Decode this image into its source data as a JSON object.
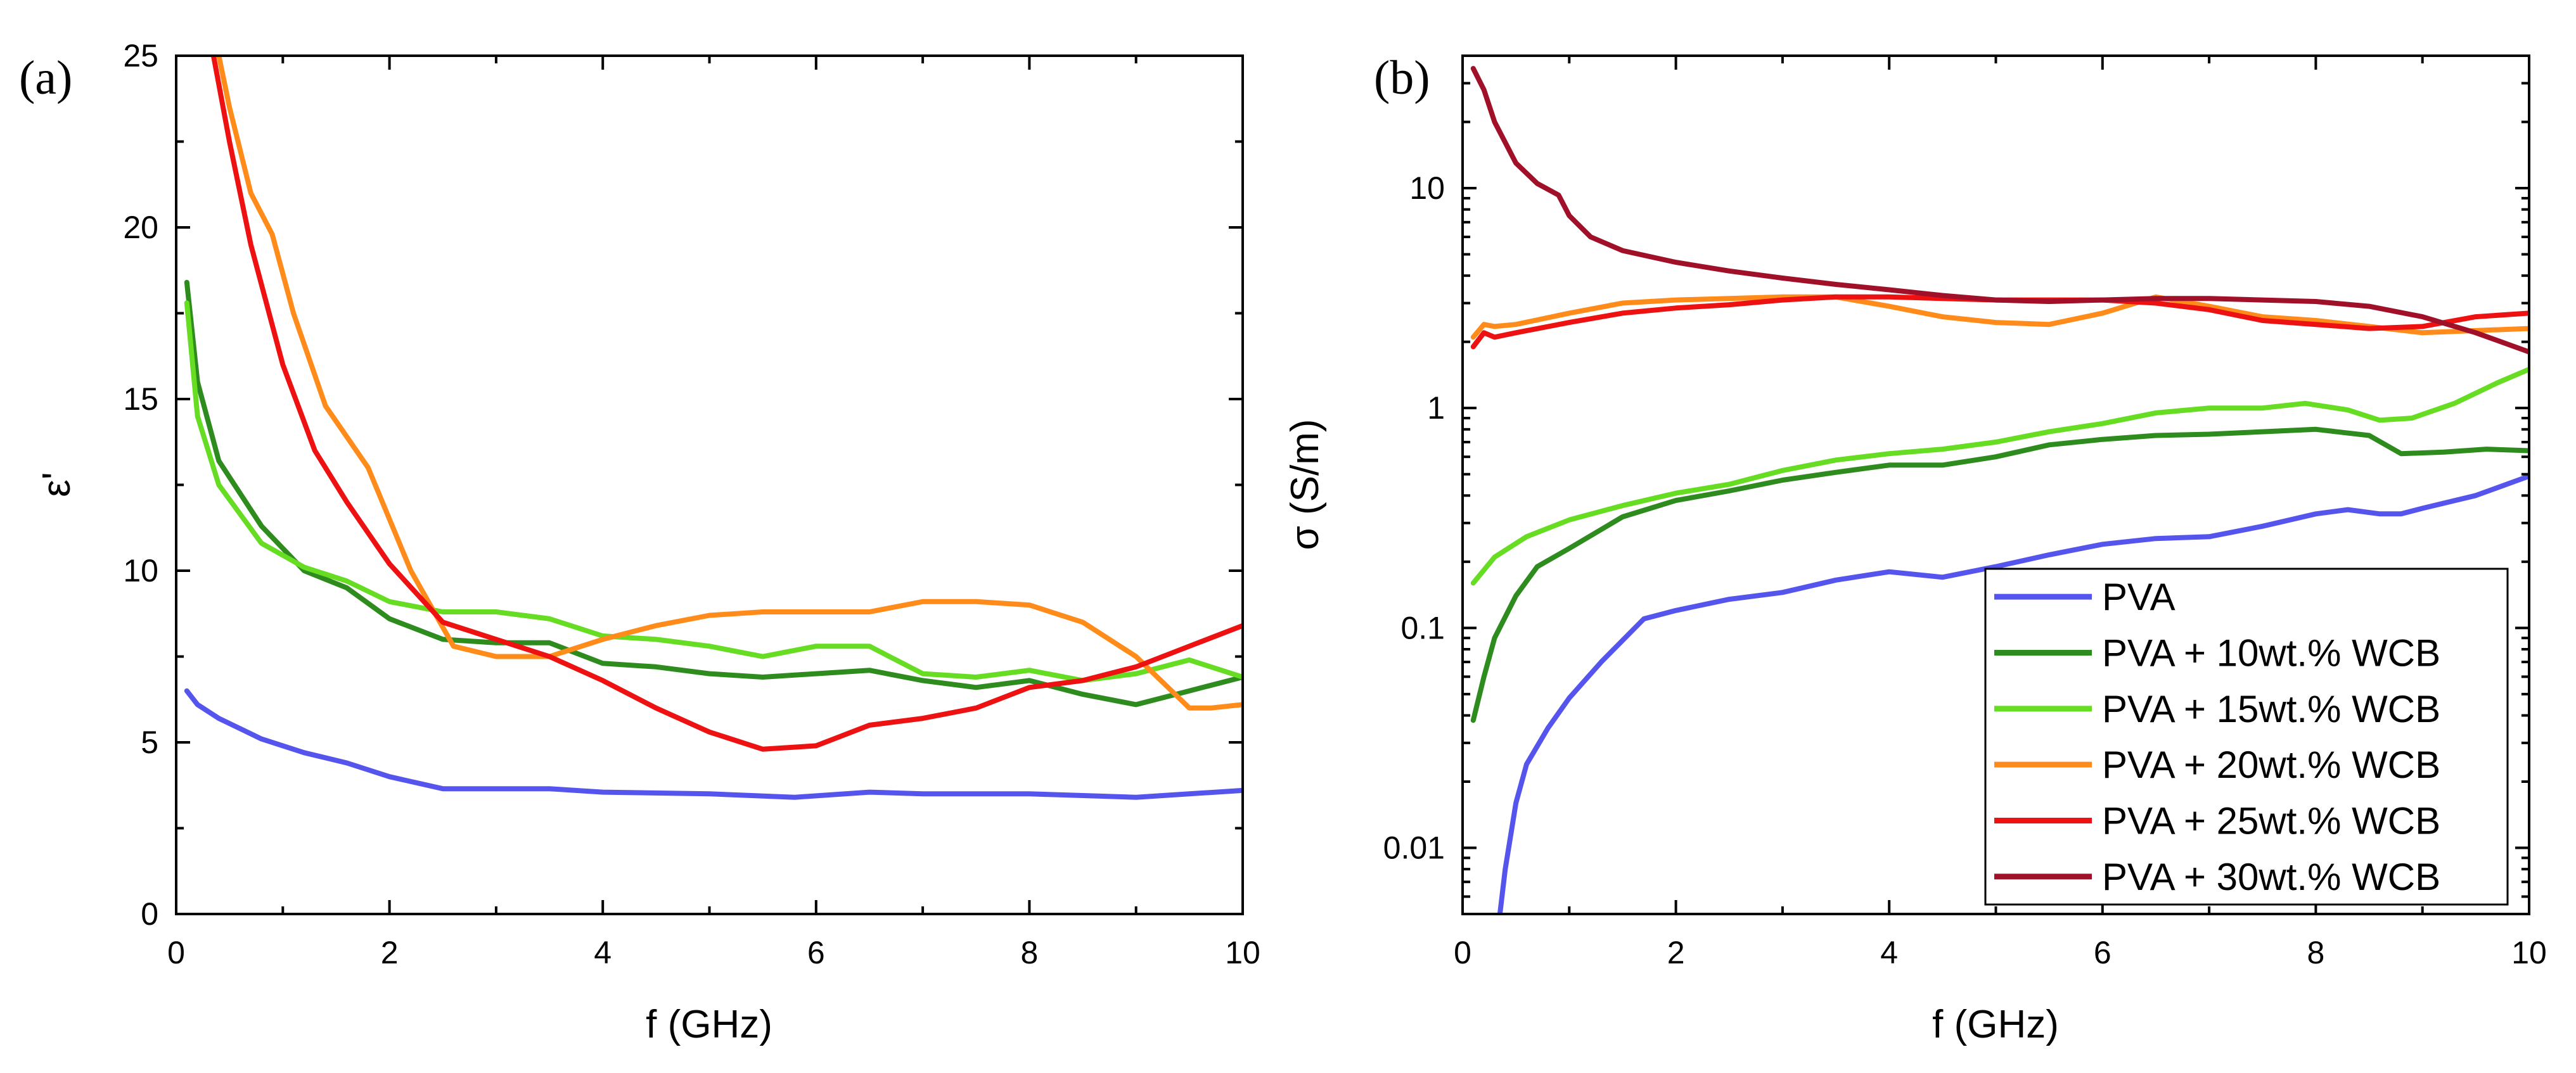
{
  "figure": {
    "panel_a_label": "(a)",
    "panel_b_label": "(b)"
  },
  "chart_data": [
    {
      "type": "line",
      "panel": "(a)",
      "xlabel": "f (GHz)",
      "ylabel": "ε'",
      "xlim": [
        0,
        10
      ],
      "ylim": [
        0,
        25
      ],
      "x_ticks": [
        0,
        2,
        4,
        6,
        8,
        10
      ],
      "y_ticks": [
        0,
        5,
        10,
        15,
        20,
        25
      ],
      "y_scale": "linear",
      "grid": false,
      "series": [
        {
          "name": "PVA",
          "color": "#5555ee",
          "x": [
            0.1,
            0.2,
            0.4,
            0.8,
            1.2,
            1.6,
            2.0,
            2.5,
            3.0,
            3.5,
            4.0,
            5.0,
            5.8,
            6.5,
            7.0,
            8.0,
            9.0,
            9.5,
            10.0
          ],
          "y": [
            6.5,
            6.1,
            5.7,
            5.1,
            4.7,
            4.4,
            4.0,
            3.65,
            3.65,
            3.65,
            3.55,
            3.5,
            3.4,
            3.55,
            3.5,
            3.5,
            3.4,
            3.5,
            3.6
          ]
        },
        {
          "name": "PVA + 10wt.% WCB",
          "color": "#2e8b1e",
          "x": [
            0.1,
            0.2,
            0.4,
            0.8,
            1.2,
            1.6,
            2.0,
            2.5,
            3.0,
            3.5,
            4.0,
            4.5,
            5.0,
            5.5,
            6.0,
            6.5,
            7.0,
            7.5,
            8.0,
            8.5,
            9.0,
            9.5,
            10.0
          ],
          "y": [
            18.4,
            15.5,
            13.2,
            11.3,
            10.0,
            9.5,
            8.6,
            8.0,
            7.9,
            7.9,
            7.3,
            7.2,
            7.0,
            6.9,
            7.0,
            7.1,
            6.8,
            6.6,
            6.8,
            6.4,
            6.1,
            6.5,
            6.9
          ]
        },
        {
          "name": "PVA + 15wt.% WCB",
          "color": "#66dd22",
          "x": [
            0.1,
            0.2,
            0.4,
            0.8,
            1.2,
            1.6,
            2.0,
            2.5,
            3.0,
            3.5,
            4.0,
            4.5,
            5.0,
            5.5,
            6.0,
            6.5,
            7.0,
            7.5,
            8.0,
            8.5,
            9.0,
            9.5,
            10.0
          ],
          "y": [
            17.8,
            14.5,
            12.5,
            10.8,
            10.1,
            9.7,
            9.1,
            8.8,
            8.8,
            8.6,
            8.1,
            8.0,
            7.8,
            7.5,
            7.8,
            7.8,
            7.0,
            6.9,
            7.1,
            6.8,
            7.0,
            7.4,
            6.9
          ]
        },
        {
          "name": "PVA + 20wt.% WCB",
          "color": "#ff8c1a",
          "x": [
            0.4,
            0.5,
            0.7,
            0.9,
            1.1,
            1.4,
            1.8,
            2.2,
            2.6,
            3.0,
            3.5,
            4.0,
            4.5,
            5.0,
            5.5,
            6.0,
            6.5,
            7.0,
            7.5,
            8.0,
            8.5,
            9.0,
            9.5,
            9.7,
            10.0
          ],
          "y": [
            25,
            23.5,
            21.0,
            19.8,
            17.5,
            14.8,
            13.0,
            10.0,
            7.8,
            7.5,
            7.5,
            8.0,
            8.4,
            8.7,
            8.8,
            8.8,
            8.8,
            9.1,
            9.1,
            9.0,
            8.5,
            7.5,
            6.0,
            6.0,
            6.1
          ]
        },
        {
          "name": "PVA + 25wt.% WCB",
          "color": "#ee1111",
          "x": [
            0.35,
            0.5,
            0.7,
            1.0,
            1.3,
            1.6,
            2.0,
            2.5,
            3.0,
            3.5,
            4.0,
            4.5,
            5.0,
            5.5,
            6.0,
            6.5,
            7.0,
            7.5,
            8.0,
            8.5,
            9.0,
            9.5,
            10.0
          ],
          "y": [
            25,
            22.5,
            19.5,
            16.0,
            13.5,
            12.0,
            10.2,
            8.5,
            8.0,
            7.5,
            6.8,
            6.0,
            5.3,
            4.8,
            4.9,
            5.5,
            5.7,
            6.0,
            6.6,
            6.8,
            7.2,
            7.8,
            8.4
          ]
        }
      ]
    },
    {
      "type": "line",
      "panel": "(b)",
      "xlabel": "f (GHz)",
      "ylabel": "σ (S/m)",
      "xlim": [
        0,
        10
      ],
      "ylim": [
        0.005,
        40
      ],
      "x_ticks": [
        0,
        2,
        4,
        6,
        8,
        10
      ],
      "y_ticks": [
        0.01,
        0.1,
        1,
        10
      ],
      "y_tick_labels": [
        "0.01",
        "0.1",
        "1",
        "10"
      ],
      "y_scale": "log",
      "grid": false,
      "legend_position": "bottom-right",
      "series": [
        {
          "name": "PVA",
          "color": "#5555ee",
          "x": [
            0.35,
            0.4,
            0.5,
            0.6,
            0.8,
            1.0,
            1.3,
            1.7,
            2.0,
            2.5,
            3.0,
            3.5,
            4.0,
            4.5,
            5.0,
            5.5,
            6.0,
            6.5,
            7.0,
            7.5,
            8.0,
            8.3,
            8.6,
            8.8,
            9.0,
            9.5,
            10.0
          ],
          "y": [
            0.005,
            0.008,
            0.016,
            0.024,
            0.035,
            0.048,
            0.07,
            0.11,
            0.12,
            0.135,
            0.145,
            0.165,
            0.18,
            0.17,
            0.19,
            0.215,
            0.24,
            0.255,
            0.26,
            0.29,
            0.33,
            0.345,
            0.33,
            0.33,
            0.35,
            0.4,
            0.49
          ]
        },
        {
          "name": "PVA + 10wt.% WCB",
          "color": "#2e8b1e",
          "x": [
            0.1,
            0.2,
            0.3,
            0.5,
            0.7,
            1.0,
            1.5,
            2.0,
            2.5,
            3.0,
            3.5,
            4.0,
            4.5,
            5.0,
            5.5,
            6.0,
            6.5,
            7.0,
            7.5,
            8.0,
            8.5,
            8.8,
            9.2,
            9.6,
            10.0
          ],
          "y": [
            0.038,
            0.06,
            0.09,
            0.14,
            0.19,
            0.23,
            0.32,
            0.38,
            0.42,
            0.47,
            0.51,
            0.55,
            0.55,
            0.6,
            0.68,
            0.72,
            0.75,
            0.76,
            0.78,
            0.8,
            0.75,
            0.62,
            0.63,
            0.65,
            0.64
          ]
        },
        {
          "name": "PVA + 15wt.% WCB",
          "color": "#66dd22",
          "x": [
            0.1,
            0.3,
            0.6,
            1.0,
            1.5,
            2.0,
            2.5,
            3.0,
            3.5,
            4.0,
            4.5,
            5.0,
            5.5,
            6.0,
            6.5,
            7.0,
            7.5,
            7.9,
            8.3,
            8.6,
            8.9,
            9.3,
            9.7,
            10.0
          ],
          "y": [
            0.16,
            0.21,
            0.26,
            0.31,
            0.36,
            0.41,
            0.45,
            0.52,
            0.58,
            0.62,
            0.65,
            0.7,
            0.78,
            0.85,
            0.95,
            1.0,
            1.0,
            1.05,
            0.98,
            0.88,
            0.9,
            1.05,
            1.3,
            1.5
          ]
        },
        {
          "name": "PVA + 20wt.% WCB",
          "color": "#ff8c1a",
          "x": [
            0.1,
            0.2,
            0.3,
            0.5,
            1.0,
            1.5,
            2.0,
            2.5,
            3.0,
            3.5,
            4.0,
            4.5,
            5.0,
            5.5,
            6.0,
            6.5,
            7.0,
            7.5,
            8.0,
            8.5,
            9.0,
            9.5,
            10.0
          ],
          "y": [
            2.1,
            2.4,
            2.35,
            2.4,
            2.7,
            3.0,
            3.1,
            3.15,
            3.2,
            3.2,
            2.9,
            2.6,
            2.45,
            2.4,
            2.7,
            3.2,
            2.9,
            2.6,
            2.5,
            2.35,
            2.2,
            2.25,
            2.3
          ]
        },
        {
          "name": "PVA + 25wt.% WCB",
          "color": "#ee1111",
          "x": [
            0.1,
            0.2,
            0.3,
            0.5,
            1.0,
            1.5,
            2.0,
            2.5,
            3.0,
            3.5,
            4.0,
            4.5,
            5.0,
            5.5,
            6.0,
            6.5,
            7.0,
            7.5,
            8.0,
            8.5,
            9.0,
            9.5,
            10.0
          ],
          "y": [
            1.9,
            2.2,
            2.1,
            2.2,
            2.45,
            2.7,
            2.85,
            2.95,
            3.1,
            3.2,
            3.2,
            3.15,
            3.1,
            3.1,
            3.1,
            3.0,
            2.8,
            2.5,
            2.4,
            2.3,
            2.35,
            2.6,
            2.7
          ]
        },
        {
          "name": "PVA + 30wt.% WCB",
          "color": "#a01028",
          "x": [
            0.1,
            0.2,
            0.3,
            0.5,
            0.7,
            0.9,
            1.0,
            1.2,
            1.5,
            2.0,
            2.5,
            3.0,
            3.5,
            4.0,
            4.5,
            5.0,
            5.5,
            6.0,
            6.5,
            7.0,
            7.5,
            8.0,
            8.5,
            9.0,
            9.5,
            10.0
          ],
          "y": [
            35,
            28,
            20,
            13,
            10.5,
            9.3,
            7.5,
            6.0,
            5.2,
            4.6,
            4.2,
            3.9,
            3.65,
            3.45,
            3.25,
            3.1,
            3.05,
            3.1,
            3.15,
            3.15,
            3.1,
            3.05,
            2.9,
            2.6,
            2.2,
            1.8
          ]
        }
      ]
    }
  ]
}
